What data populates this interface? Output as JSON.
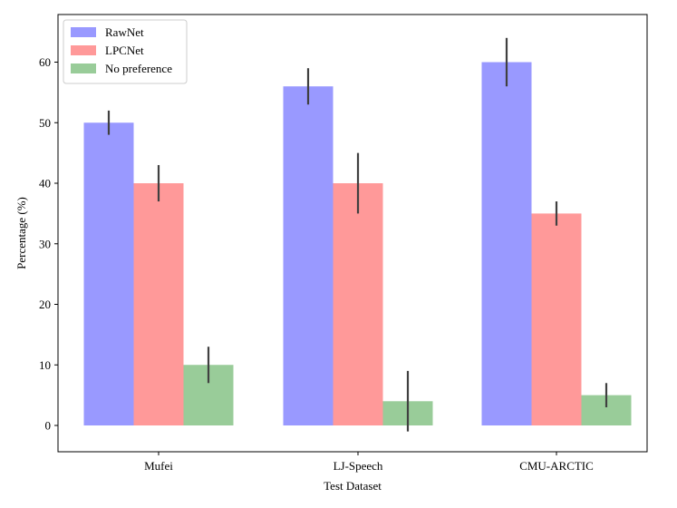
{
  "chart_data": {
    "type": "bar",
    "title": "",
    "xlabel": "Test Dataset",
    "ylabel": "Percentage (%)",
    "categories": [
      "Mufei",
      "LJ-Speech",
      "CMU-ARCTIC"
    ],
    "ylim": [
      -4,
      65
    ],
    "yticks": [
      0,
      10,
      20,
      30,
      40,
      50,
      60
    ],
    "grid": false,
    "legend_position": "top-left",
    "series": [
      {
        "name": "RawNet",
        "color": "#9999ff",
        "values": [
          50,
          56,
          60
        ],
        "err_low": [
          48,
          53,
          56
        ],
        "err_high": [
          52,
          59,
          64
        ]
      },
      {
        "name": "LPCNet",
        "color": "#ff9999",
        "values": [
          40,
          40,
          35
        ],
        "err_low": [
          37,
          35,
          33
        ],
        "err_high": [
          43,
          45,
          37
        ]
      },
      {
        "name": "No preference",
        "color": "#99cc99",
        "values": [
          10,
          4,
          5
        ],
        "err_low": [
          7,
          -1,
          3
        ],
        "err_high": [
          13,
          9,
          7
        ]
      }
    ]
  }
}
